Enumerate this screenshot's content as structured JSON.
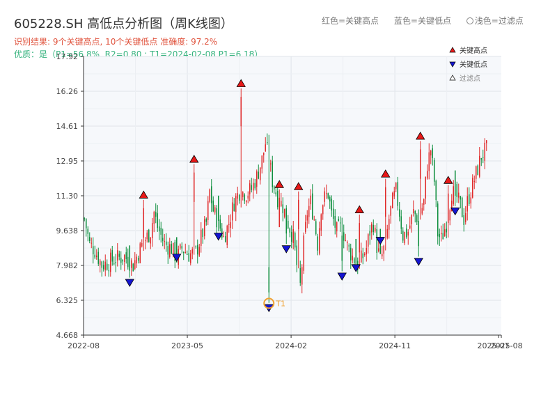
{
  "title": "605228.SH 高低点分析图（周K线图）",
  "subtitle_result": "识别结果: 9个关键高点, 10个关键低点   准确度: 97.2%",
  "subtitle_quality": "优质：是（P1=56.8%, R2=0.80 ; T1=2024-02-08 P1=6.18）",
  "color_note": {
    "red": "红色=关键高点",
    "blue": "蓝色=关键低点",
    "light": "浅色=过滤点"
  },
  "colors": {
    "up": "#e02b2b",
    "down": "#0f8f3f",
    "high_marker": "#e81818",
    "low_marker": "#1414d2",
    "t1_ring": "#f0a030",
    "plot_bg": "#f6f8fb",
    "grid": "#e0e4ea"
  },
  "chart_data": {
    "type": "candlestick",
    "ylim": [
      4.668,
      17.92
    ],
    "y_ticks": [
      "4.668",
      "6.325",
      "7.982",
      "9.638",
      "11.30",
      "12.95",
      "14.61",
      "16.26",
      "17.92"
    ],
    "x_ticks": [
      "2022-08",
      "2023-05",
      "2024-02",
      "2024-11",
      "2025-07",
      "2025-08"
    ],
    "t1_label": "T1",
    "legend": [
      {
        "name": "关键高点",
        "marker": "triangle-up",
        "color": "#e81818"
      },
      {
        "name": "关键低点",
        "marker": "triangle-down",
        "color": "#1414d2"
      },
      {
        "name": "过滤点",
        "marker": "triangle-up-open",
        "color": "#888888"
      }
    ],
    "close_path": [
      [
        0,
        10.2
      ],
      [
        3,
        9.0
      ],
      [
        6,
        8.7
      ],
      [
        10,
        8.0
      ],
      [
        13,
        8.1
      ],
      [
        18,
        8.3
      ],
      [
        23,
        8.4
      ],
      [
        28,
        8.0
      ],
      [
        31,
        8.6
      ],
      [
        34,
        9.1
      ],
      [
        38,
        9.6
      ],
      [
        40,
        10.5
      ],
      [
        42,
        9.8
      ],
      [
        46,
        9.0
      ],
      [
        50,
        8.8
      ],
      [
        53,
        8.3
      ],
      [
        56,
        8.8
      ],
      [
        60,
        8.5
      ],
      [
        64,
        8.6
      ],
      [
        67,
        9.3
      ],
      [
        70,
        10.0
      ],
      [
        72,
        11.5
      ],
      [
        74,
        10.6
      ],
      [
        77,
        10.0
      ],
      [
        80,
        9.3
      ],
      [
        83,
        10.0
      ],
      [
        86,
        11.0
      ],
      [
        89,
        11.5
      ],
      [
        93,
        11.4
      ],
      [
        96,
        11.6
      ],
      [
        99,
        12.2
      ],
      [
        102,
        13.0
      ],
      [
        104,
        13.8
      ],
      [
        106,
        13.0
      ],
      [
        108,
        12.0
      ],
      [
        111,
        11.2
      ],
      [
        114,
        10.8
      ],
      [
        117,
        10.0
      ],
      [
        120,
        9.3
      ],
      [
        122,
        8.0
      ],
      [
        124,
        7.0
      ],
      [
        126,
        9.0
      ],
      [
        128,
        10.5
      ],
      [
        130,
        11.0
      ],
      [
        132,
        10.2
      ],
      [
        134,
        9.0
      ],
      [
        136,
        10.8
      ],
      [
        138,
        11.2
      ],
      [
        140,
        11.4
      ],
      [
        142,
        10.4
      ],
      [
        145,
        9.6
      ],
      [
        148,
        9.8
      ],
      [
        151,
        8.9
      ],
      [
        154,
        8.4
      ],
      [
        157,
        8.0
      ],
      [
        160,
        8.4
      ],
      [
        162,
        8.8
      ],
      [
        164,
        9.6
      ],
      [
        166,
        10.0
      ],
      [
        168,
        8.9
      ],
      [
        170,
        8.2
      ],
      [
        173,
        9.0
      ],
      [
        175,
        10.2
      ],
      [
        177,
        11.0
      ],
      [
        179,
        11.5
      ],
      [
        181,
        10.5
      ],
      [
        183,
        9.4
      ],
      [
        186,
        9.6
      ],
      [
        189,
        10.5
      ],
      [
        192,
        10.2
      ],
      [
        195,
        11.0
      ],
      [
        197,
        12.8
      ],
      [
        199,
        13.5
      ],
      [
        201,
        12.0
      ],
      [
        203,
        9.5
      ],
      [
        205,
        9.2
      ],
      [
        208,
        10.0
      ],
      [
        211,
        11.5
      ],
      [
        214,
        11.2
      ],
      [
        216,
        10.8
      ],
      [
        218,
        10.2
      ],
      [
        220,
        11.0
      ],
      [
        223,
        11.8
      ],
      [
        226,
        12.6
      ],
      [
        228,
        13.2
      ],
      [
        231,
        13.5
      ]
    ],
    "key_highs": [
      {
        "week": 34,
        "value": 11.1
      },
      {
        "week": 63,
        "value": 12.8
      },
      {
        "week": 90,
        "value": 16.4
      },
      {
        "week": 112,
        "value": 11.6
      },
      {
        "week": 123,
        "value": 11.5
      },
      {
        "week": 158,
        "value": 10.4
      },
      {
        "week": 173,
        "value": 12.1
      },
      {
        "week": 193,
        "value": 13.9
      },
      {
        "week": 209,
        "value": 11.8
      }
    ],
    "key_lows": [
      {
        "week": 26,
        "value": 7.4
      },
      {
        "week": 53,
        "value": 8.6
      },
      {
        "week": 77,
        "value": 9.6
      },
      {
        "week": 106,
        "value": 6.2
      },
      {
        "week": 116,
        "value": 9.0
      },
      {
        "week": 148,
        "value": 7.7
      },
      {
        "week": 156,
        "value": 8.1
      },
      {
        "week": 170,
        "value": 9.4
      },
      {
        "week": 192,
        "value": 8.4
      },
      {
        "week": 213,
        "value": 10.8
      }
    ],
    "t1": {
      "week": 106,
      "value": 6.18
    }
  }
}
